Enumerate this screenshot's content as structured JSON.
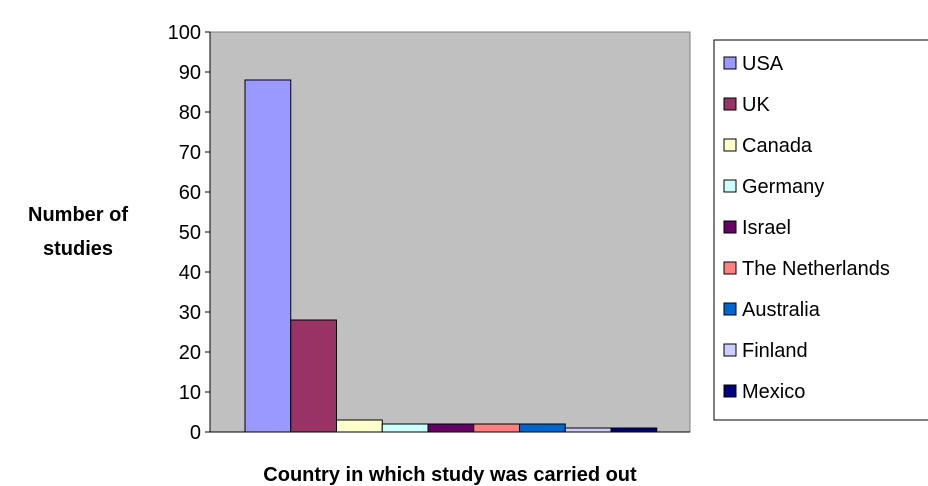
{
  "chart_data": {
    "type": "bar",
    "title": "",
    "xlabel": "Country in which study was carried out",
    "ylabel": [
      "Number of",
      "studies"
    ],
    "ylim": [
      0,
      100
    ],
    "yticks": [
      0,
      10,
      20,
      30,
      40,
      50,
      60,
      70,
      80,
      90,
      100
    ],
    "grid": false,
    "legend_position": "right",
    "plot_background": "#c0c0c0",
    "series": [
      {
        "name": "USA",
        "value": 88,
        "color": "#9999ff"
      },
      {
        "name": "UK",
        "value": 28,
        "color": "#993366"
      },
      {
        "name": "Canada",
        "value": 3,
        "color": "#ffffcc"
      },
      {
        "name": "Germany",
        "value": 2,
        "color": "#ccffff"
      },
      {
        "name": "Israel",
        "value": 2,
        "color": "#660066"
      },
      {
        "name": "The Netherlands",
        "value": 2,
        "color": "#ff8080"
      },
      {
        "name": "Australia",
        "value": 2,
        "color": "#0066cc"
      },
      {
        "name": "Finland",
        "value": 1,
        "color": "#ccccff"
      },
      {
        "name": "Mexico",
        "value": 1,
        "color": "#000080"
      }
    ]
  }
}
